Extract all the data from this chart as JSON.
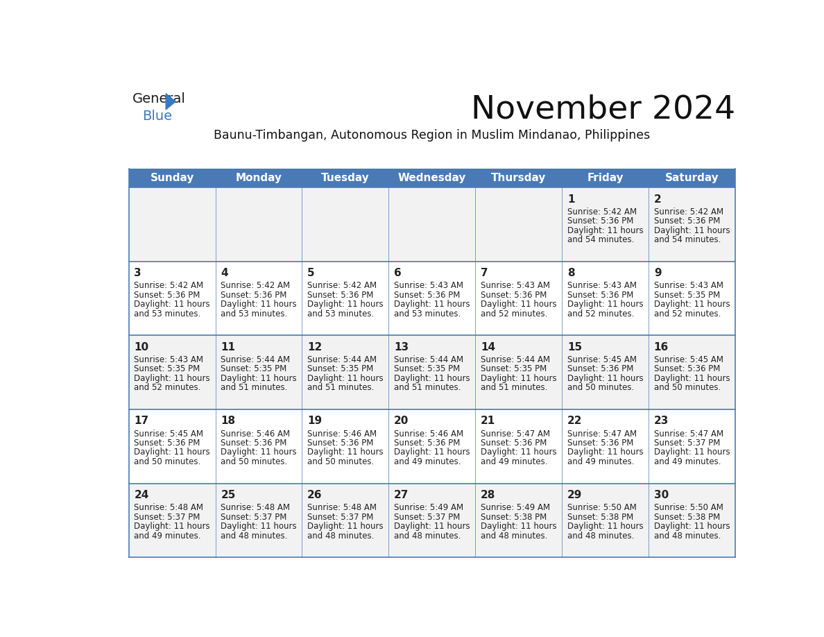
{
  "title": "November 2024",
  "subtitle": "Baunu-Timbangan, Autonomous Region in Muslim Mindanao, Philippines",
  "days_of_week": [
    "Sunday",
    "Monday",
    "Tuesday",
    "Wednesday",
    "Thursday",
    "Friday",
    "Saturday"
  ],
  "header_bg": "#4a7ab5",
  "header_text": "#ffffff",
  "row_bg_0": "#f2f2f2",
  "row_bg_1": "#ffffff",
  "cell_text": "#222222",
  "grid_line": "#4a7ab5",
  "title_color": "#111111",
  "subtitle_color": "#111111",
  "weeks": [
    [
      {
        "day": null,
        "sunrise": null,
        "sunset": null,
        "daylight": null
      },
      {
        "day": null,
        "sunrise": null,
        "sunset": null,
        "daylight": null
      },
      {
        "day": null,
        "sunrise": null,
        "sunset": null,
        "daylight": null
      },
      {
        "day": null,
        "sunrise": null,
        "sunset": null,
        "daylight": null
      },
      {
        "day": null,
        "sunrise": null,
        "sunset": null,
        "daylight": null
      },
      {
        "day": 1,
        "sunrise": "5:42 AM",
        "sunset": "5:36 PM",
        "daylight": "11 hours and 54 minutes."
      },
      {
        "day": 2,
        "sunrise": "5:42 AM",
        "sunset": "5:36 PM",
        "daylight": "11 hours and 54 minutes."
      }
    ],
    [
      {
        "day": 3,
        "sunrise": "5:42 AM",
        "sunset": "5:36 PM",
        "daylight": "11 hours and 53 minutes."
      },
      {
        "day": 4,
        "sunrise": "5:42 AM",
        "sunset": "5:36 PM",
        "daylight": "11 hours and 53 minutes."
      },
      {
        "day": 5,
        "sunrise": "5:42 AM",
        "sunset": "5:36 PM",
        "daylight": "11 hours and 53 minutes."
      },
      {
        "day": 6,
        "sunrise": "5:43 AM",
        "sunset": "5:36 PM",
        "daylight": "11 hours and 53 minutes."
      },
      {
        "day": 7,
        "sunrise": "5:43 AM",
        "sunset": "5:36 PM",
        "daylight": "11 hours and 52 minutes."
      },
      {
        "day": 8,
        "sunrise": "5:43 AM",
        "sunset": "5:36 PM",
        "daylight": "11 hours and 52 minutes."
      },
      {
        "day": 9,
        "sunrise": "5:43 AM",
        "sunset": "5:35 PM",
        "daylight": "11 hours and 52 minutes."
      }
    ],
    [
      {
        "day": 10,
        "sunrise": "5:43 AM",
        "sunset": "5:35 PM",
        "daylight": "11 hours and 52 minutes."
      },
      {
        "day": 11,
        "sunrise": "5:44 AM",
        "sunset": "5:35 PM",
        "daylight": "11 hours and 51 minutes."
      },
      {
        "day": 12,
        "sunrise": "5:44 AM",
        "sunset": "5:35 PM",
        "daylight": "11 hours and 51 minutes."
      },
      {
        "day": 13,
        "sunrise": "5:44 AM",
        "sunset": "5:35 PM",
        "daylight": "11 hours and 51 minutes."
      },
      {
        "day": 14,
        "sunrise": "5:44 AM",
        "sunset": "5:35 PM",
        "daylight": "11 hours and 51 minutes."
      },
      {
        "day": 15,
        "sunrise": "5:45 AM",
        "sunset": "5:36 PM",
        "daylight": "11 hours and 50 minutes."
      },
      {
        "day": 16,
        "sunrise": "5:45 AM",
        "sunset": "5:36 PM",
        "daylight": "11 hours and 50 minutes."
      }
    ],
    [
      {
        "day": 17,
        "sunrise": "5:45 AM",
        "sunset": "5:36 PM",
        "daylight": "11 hours and 50 minutes."
      },
      {
        "day": 18,
        "sunrise": "5:46 AM",
        "sunset": "5:36 PM",
        "daylight": "11 hours and 50 minutes."
      },
      {
        "day": 19,
        "sunrise": "5:46 AM",
        "sunset": "5:36 PM",
        "daylight": "11 hours and 50 minutes."
      },
      {
        "day": 20,
        "sunrise": "5:46 AM",
        "sunset": "5:36 PM",
        "daylight": "11 hours and 49 minutes."
      },
      {
        "day": 21,
        "sunrise": "5:47 AM",
        "sunset": "5:36 PM",
        "daylight": "11 hours and 49 minutes."
      },
      {
        "day": 22,
        "sunrise": "5:47 AM",
        "sunset": "5:36 PM",
        "daylight": "11 hours and 49 minutes."
      },
      {
        "day": 23,
        "sunrise": "5:47 AM",
        "sunset": "5:37 PM",
        "daylight": "11 hours and 49 minutes."
      }
    ],
    [
      {
        "day": 24,
        "sunrise": "5:48 AM",
        "sunset": "5:37 PM",
        "daylight": "11 hours and 49 minutes."
      },
      {
        "day": 25,
        "sunrise": "5:48 AM",
        "sunset": "5:37 PM",
        "daylight": "11 hours and 48 minutes."
      },
      {
        "day": 26,
        "sunrise": "5:48 AM",
        "sunset": "5:37 PM",
        "daylight": "11 hours and 48 minutes."
      },
      {
        "day": 27,
        "sunrise": "5:49 AM",
        "sunset": "5:37 PM",
        "daylight": "11 hours and 48 minutes."
      },
      {
        "day": 28,
        "sunrise": "5:49 AM",
        "sunset": "5:38 PM",
        "daylight": "11 hours and 48 minutes."
      },
      {
        "day": 29,
        "sunrise": "5:50 AM",
        "sunset": "5:38 PM",
        "daylight": "11 hours and 48 minutes."
      },
      {
        "day": 30,
        "sunrise": "5:50 AM",
        "sunset": "5:38 PM",
        "daylight": "11 hours and 48 minutes."
      }
    ]
  ]
}
